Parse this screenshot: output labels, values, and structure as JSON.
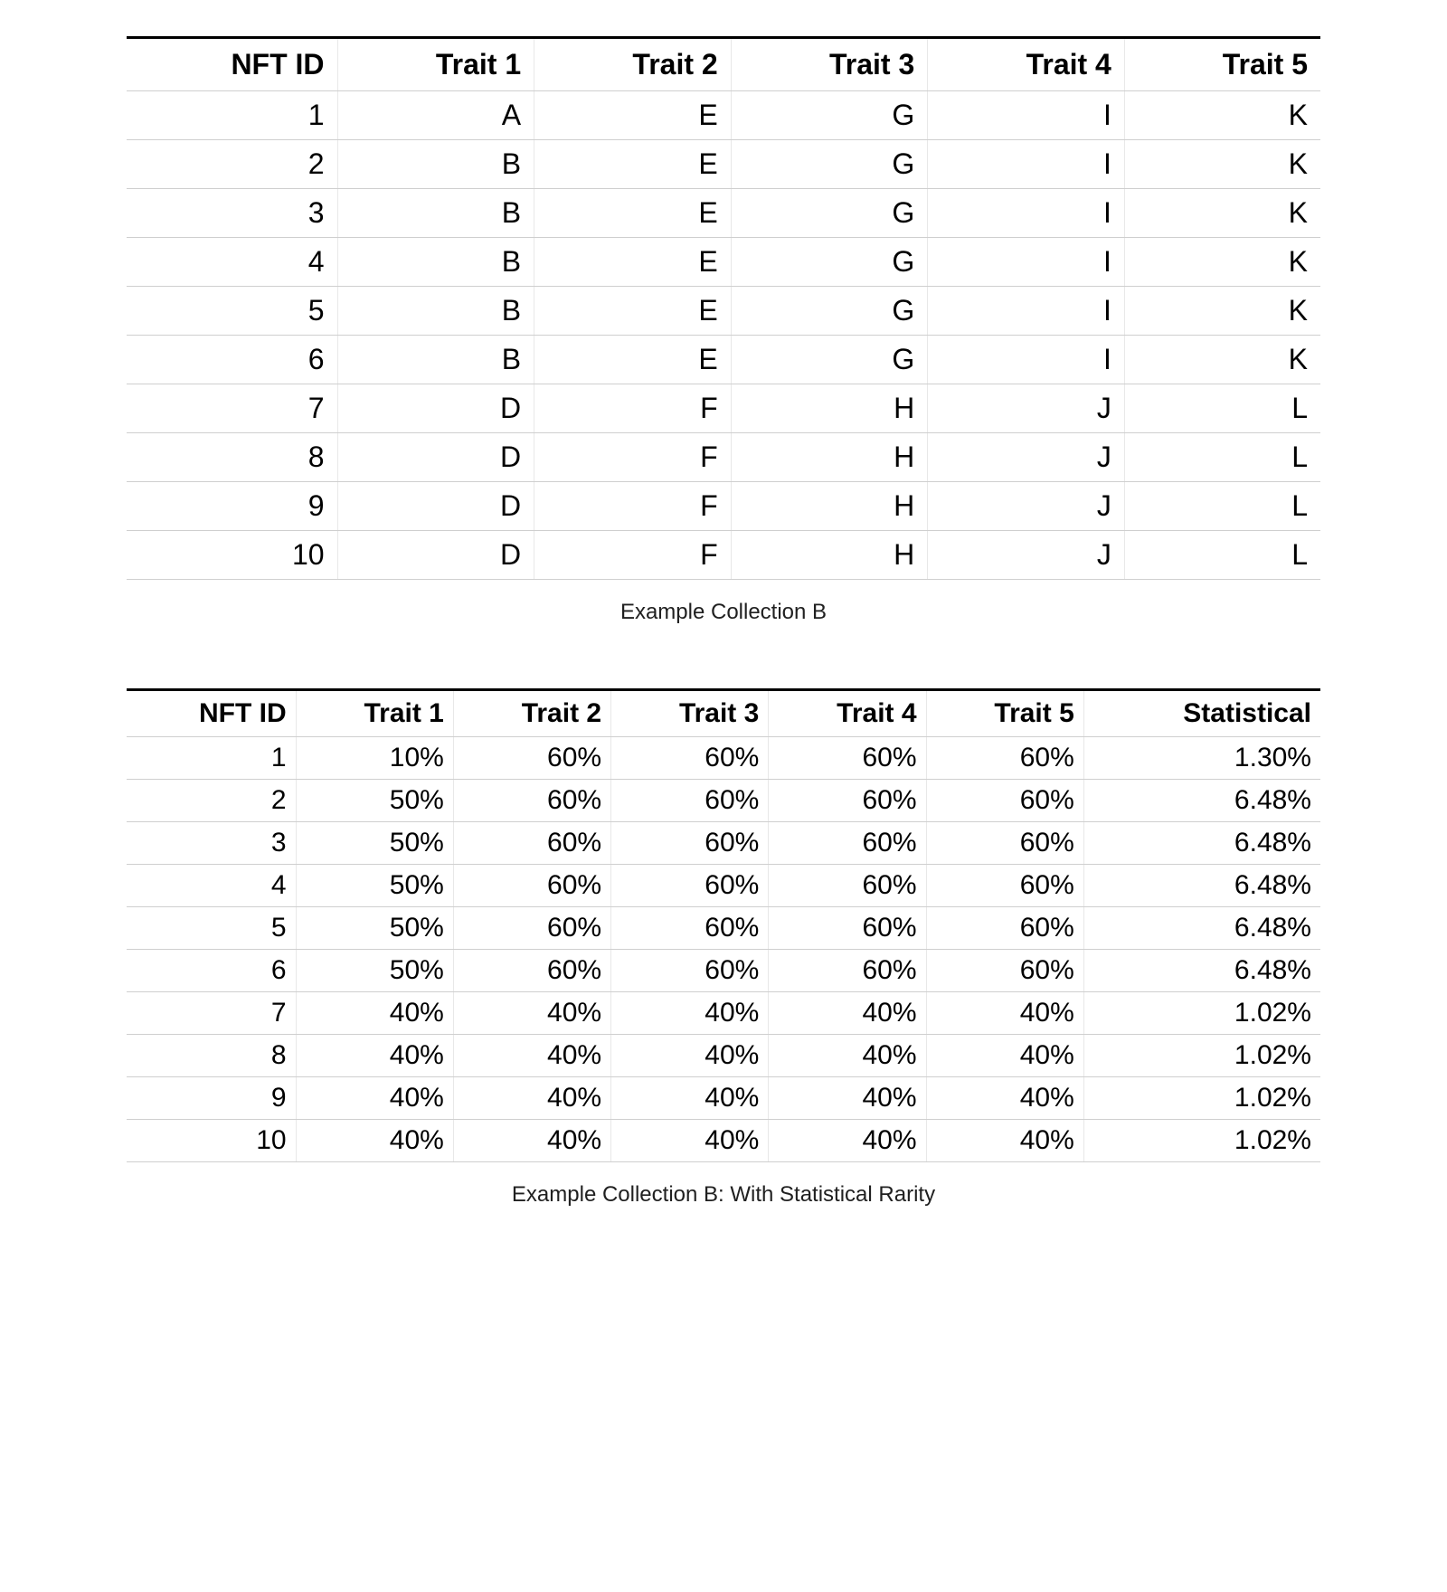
{
  "table1": {
    "columns": [
      "NFT ID",
      "Trait 1",
      "Trait 2",
      "Trait 3",
      "Trait 4",
      "Trait 5"
    ],
    "rows": [
      [
        "1",
        "A",
        "E",
        "G",
        "I",
        "K"
      ],
      [
        "2",
        "B",
        "E",
        "G",
        "I",
        "K"
      ],
      [
        "3",
        "B",
        "E",
        "G",
        "I",
        "K"
      ],
      [
        "4",
        "B",
        "E",
        "G",
        "I",
        "K"
      ],
      [
        "5",
        "B",
        "E",
        "G",
        "I",
        "K"
      ],
      [
        "6",
        "B",
        "E",
        "G",
        "I",
        "K"
      ],
      [
        "7",
        "D",
        "F",
        "H",
        "J",
        "L"
      ],
      [
        "8",
        "D",
        "F",
        "H",
        "J",
        "L"
      ],
      [
        "9",
        "D",
        "F",
        "H",
        "J",
        "L"
      ],
      [
        "10",
        "D",
        "F",
        "H",
        "J",
        "L"
      ]
    ],
    "caption": "Example Collection B",
    "styling": {
      "header_font_weight": 700,
      "header_fontsize": 32,
      "cell_fontsize": 32,
      "text_align": "right",
      "top_border_color": "#000000",
      "top_border_width": 3,
      "row_border_color": "#cfcfcf",
      "col_border_color": "#e8e8e8",
      "text_color": "#000000",
      "background_color": "#ffffff"
    }
  },
  "table2": {
    "columns": [
      "NFT ID",
      "Trait 1",
      "Trait 2",
      "Trait 3",
      "Trait 4",
      "Trait 5",
      "Statistical"
    ],
    "rows": [
      [
        "1",
        "10%",
        "60%",
        "60%",
        "60%",
        "60%",
        "1.30%"
      ],
      [
        "2",
        "50%",
        "60%",
        "60%",
        "60%",
        "60%",
        "6.48%"
      ],
      [
        "3",
        "50%",
        "60%",
        "60%",
        "60%",
        "60%",
        "6.48%"
      ],
      [
        "4",
        "50%",
        "60%",
        "60%",
        "60%",
        "60%",
        "6.48%"
      ],
      [
        "5",
        "50%",
        "60%",
        "60%",
        "60%",
        "60%",
        "6.48%"
      ],
      [
        "6",
        "50%",
        "60%",
        "60%",
        "60%",
        "60%",
        "6.48%"
      ],
      [
        "7",
        "40%",
        "40%",
        "40%",
        "40%",
        "40%",
        "1.02%"
      ],
      [
        "8",
        "40%",
        "40%",
        "40%",
        "40%",
        "40%",
        "1.02%"
      ],
      [
        "9",
        "40%",
        "40%",
        "40%",
        "40%",
        "40%",
        "1.02%"
      ],
      [
        "10",
        "40%",
        "40%",
        "40%",
        "40%",
        "40%",
        "1.02%"
      ]
    ],
    "caption": "Example Collection B: With Statistical Rarity",
    "styling": {
      "header_font_weight": 700,
      "header_fontsize": 30,
      "cell_fontsize": 30,
      "text_align": "right",
      "top_border_color": "#000000",
      "top_border_width": 3,
      "row_border_color": "#cfcfcf",
      "col_border_color": "#e8e8e8",
      "text_color": "#000000",
      "background_color": "#ffffff"
    }
  }
}
